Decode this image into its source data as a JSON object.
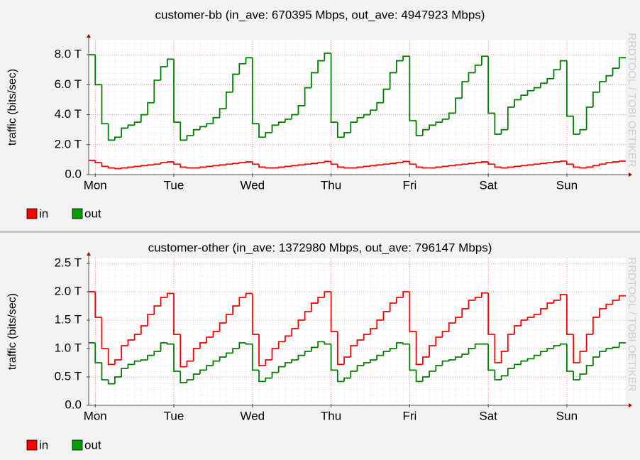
{
  "chart_data": [
    {
      "type": "line",
      "title": "customer-bb (in_ave: 670395 Mbps, out_ave: 4947923 Mbps)",
      "y_label": "traffic (bits/sec)",
      "watermark": "RRDTOOL / TOBI OETIKER",
      "x": [
        -2,
        0,
        2,
        4,
        6,
        8,
        10,
        12,
        14,
        16,
        18,
        20,
        22,
        24,
        26,
        28,
        30,
        32,
        34,
        36,
        38,
        40,
        42,
        44,
        46,
        48,
        50,
        52,
        54,
        56,
        58,
        60,
        62,
        64,
        66,
        68,
        70,
        72,
        74,
        76,
        78,
        80,
        82,
        84,
        86,
        88,
        90,
        92,
        94,
        96,
        98,
        100,
        102,
        104,
        106,
        108,
        110,
        112,
        114,
        116,
        118,
        120,
        122,
        124,
        126,
        128,
        130,
        132,
        134,
        136,
        138,
        140,
        142,
        144,
        146,
        148,
        150,
        152,
        154,
        156,
        158,
        160
      ],
      "xlim": [
        -2,
        162
      ],
      "xticks": [
        {
          "value": 0,
          "label": "Mon"
        },
        {
          "value": 24,
          "label": "Tue"
        },
        {
          "value": 48,
          "label": "Wed"
        },
        {
          "value": 72,
          "label": "Thu"
        },
        {
          "value": 96,
          "label": "Fri"
        },
        {
          "value": 120,
          "label": "Sat"
        },
        {
          "value": 144,
          "label": "Sun"
        }
      ],
      "ylim": [
        0,
        9
      ],
      "yticks": [
        {
          "value": 0,
          "label": "0.0"
        },
        {
          "value": 2,
          "label": "2.0 T"
        },
        {
          "value": 4,
          "label": "4.0 T"
        },
        {
          "value": 6,
          "label": "6.0 T"
        },
        {
          "value": 8,
          "label": "8.0 T"
        }
      ],
      "grid": true,
      "series": [
        {
          "name": "in",
          "color": "#ff0000",
          "values": [
            0.95,
            0.8,
            0.55,
            0.45,
            0.4,
            0.45,
            0.5,
            0.55,
            0.6,
            0.65,
            0.7,
            0.8,
            0.85,
            0.7,
            0.5,
            0.45,
            0.45,
            0.5,
            0.55,
            0.6,
            0.65,
            0.7,
            0.75,
            0.8,
            0.85,
            0.7,
            0.5,
            0.45,
            0.45,
            0.5,
            0.55,
            0.6,
            0.65,
            0.7,
            0.75,
            0.8,
            0.88,
            0.7,
            0.5,
            0.45,
            0.45,
            0.5,
            0.55,
            0.6,
            0.65,
            0.7,
            0.75,
            0.8,
            0.88,
            0.7,
            0.5,
            0.45,
            0.45,
            0.5,
            0.55,
            0.6,
            0.65,
            0.7,
            0.75,
            0.8,
            0.85,
            0.7,
            0.5,
            0.45,
            0.5,
            0.55,
            0.6,
            0.65,
            0.7,
            0.75,
            0.8,
            0.85,
            0.9,
            0.7,
            0.5,
            0.45,
            0.5,
            0.6,
            0.7,
            0.8,
            0.85,
            0.9
          ]
        },
        {
          "name": "out",
          "color": "#007f00",
          "values": [
            8.0,
            6.0,
            3.4,
            2.3,
            2.5,
            3.1,
            3.3,
            3.5,
            4.0,
            4.8,
            6.3,
            7.2,
            7.7,
            3.5,
            2.3,
            2.6,
            3.0,
            3.2,
            3.4,
            3.8,
            4.4,
            5.5,
            6.7,
            7.4,
            7.8,
            3.4,
            2.5,
            2.8,
            3.3,
            3.5,
            3.7,
            4.0,
            4.6,
            5.8,
            6.8,
            7.6,
            8.1,
            3.5,
            2.5,
            2.8,
            3.5,
            3.8,
            4.0,
            4.3,
            4.8,
            5.7,
            6.8,
            7.6,
            7.9,
            3.6,
            2.6,
            3.0,
            3.3,
            3.5,
            3.7,
            4.1,
            5.1,
            6.2,
            6.8,
            7.3,
            7.9,
            4.1,
            2.7,
            3.0,
            4.5,
            5.0,
            5.3,
            5.6,
            5.8,
            6.1,
            6.4,
            7.0,
            7.6,
            3.9,
            2.7,
            3.0,
            4.5,
            5.5,
            6.2,
            6.6,
            7.1,
            7.8
          ]
        }
      ]
    },
    {
      "type": "line",
      "title": "customer-other (in_ave: 1372980 Mbps, out_ave: 796147 Mbps)",
      "y_label": "traffic (bits/sec)",
      "watermark": "RRDTOOL / TOBI OETIKER",
      "x": [
        -2,
        0,
        2,
        4,
        6,
        8,
        10,
        12,
        14,
        16,
        18,
        20,
        22,
        24,
        26,
        28,
        30,
        32,
        34,
        36,
        38,
        40,
        42,
        44,
        46,
        48,
        50,
        52,
        54,
        56,
        58,
        60,
        62,
        64,
        66,
        68,
        70,
        72,
        74,
        76,
        78,
        80,
        82,
        84,
        86,
        88,
        90,
        92,
        94,
        96,
        98,
        100,
        102,
        104,
        106,
        108,
        110,
        112,
        114,
        116,
        118,
        120,
        122,
        124,
        126,
        128,
        130,
        132,
        134,
        136,
        138,
        140,
        142,
        144,
        146,
        148,
        150,
        152,
        154,
        156,
        158,
        160
      ],
      "xlim": [
        -2,
        162
      ],
      "xticks": [
        {
          "value": 0,
          "label": "Mon"
        },
        {
          "value": 24,
          "label": "Tue"
        },
        {
          "value": 48,
          "label": "Wed"
        },
        {
          "value": 72,
          "label": "Thu"
        },
        {
          "value": 96,
          "label": "Fri"
        },
        {
          "value": 120,
          "label": "Sat"
        },
        {
          "value": 144,
          "label": "Sun"
        }
      ],
      "ylim": [
        0,
        2.6
      ],
      "yticks": [
        {
          "value": 0,
          "label": "0.0"
        },
        {
          "value": 0.5,
          "label": "0.5 T"
        },
        {
          "value": 1,
          "label": "1.0 T"
        },
        {
          "value": 1.5,
          "label": "1.5 T"
        },
        {
          "value": 2,
          "label": "2.0 T"
        },
        {
          "value": 2.5,
          "label": "2.5 T"
        }
      ],
      "grid": true,
      "series": [
        {
          "name": "in",
          "color": "#ff0000",
          "values": [
            2.0,
            1.55,
            1.0,
            0.72,
            0.8,
            1.05,
            1.15,
            1.25,
            1.4,
            1.6,
            1.75,
            1.9,
            1.97,
            1.25,
            0.68,
            0.78,
            1.0,
            1.1,
            1.2,
            1.3,
            1.45,
            1.6,
            1.75,
            1.9,
            1.97,
            1.25,
            0.7,
            0.8,
            1.0,
            1.12,
            1.22,
            1.35,
            1.5,
            1.65,
            1.8,
            1.9,
            2.0,
            1.3,
            0.72,
            0.85,
            1.05,
            1.15,
            1.25,
            1.35,
            1.5,
            1.65,
            1.8,
            1.9,
            2.0,
            1.3,
            0.72,
            0.85,
            1.05,
            1.2,
            1.3,
            1.45,
            1.55,
            1.7,
            1.85,
            1.9,
            1.98,
            1.25,
            0.75,
            0.95,
            1.25,
            1.4,
            1.5,
            1.55,
            1.6,
            1.7,
            1.8,
            1.85,
            1.95,
            1.25,
            0.75,
            0.95,
            1.25,
            1.55,
            1.7,
            1.78,
            1.85,
            1.93
          ]
        },
        {
          "name": "out",
          "color": "#007f00",
          "values": [
            1.1,
            0.75,
            0.45,
            0.38,
            0.5,
            0.65,
            0.72,
            0.78,
            0.8,
            0.88,
            0.95,
            1.1,
            1.08,
            0.6,
            0.4,
            0.45,
            0.55,
            0.62,
            0.7,
            0.78,
            0.85,
            0.92,
            1.0,
            1.1,
            1.08,
            0.62,
            0.42,
            0.48,
            0.58,
            0.68,
            0.75,
            0.8,
            0.88,
            0.95,
            1.02,
            1.12,
            1.08,
            0.62,
            0.42,
            0.48,
            0.6,
            0.7,
            0.75,
            0.8,
            0.88,
            0.95,
            1.0,
            1.1,
            1.08,
            0.62,
            0.42,
            0.5,
            0.6,
            0.7,
            0.78,
            0.8,
            0.85,
            0.9,
            1.0,
            1.08,
            1.08,
            0.62,
            0.45,
            0.52,
            0.65,
            0.72,
            0.78,
            0.82,
            0.88,
            0.95,
            1.0,
            1.05,
            1.08,
            0.6,
            0.45,
            0.55,
            0.7,
            0.85,
            0.95,
            1.0,
            1.02,
            1.1
          ]
        }
      ]
    }
  ]
}
